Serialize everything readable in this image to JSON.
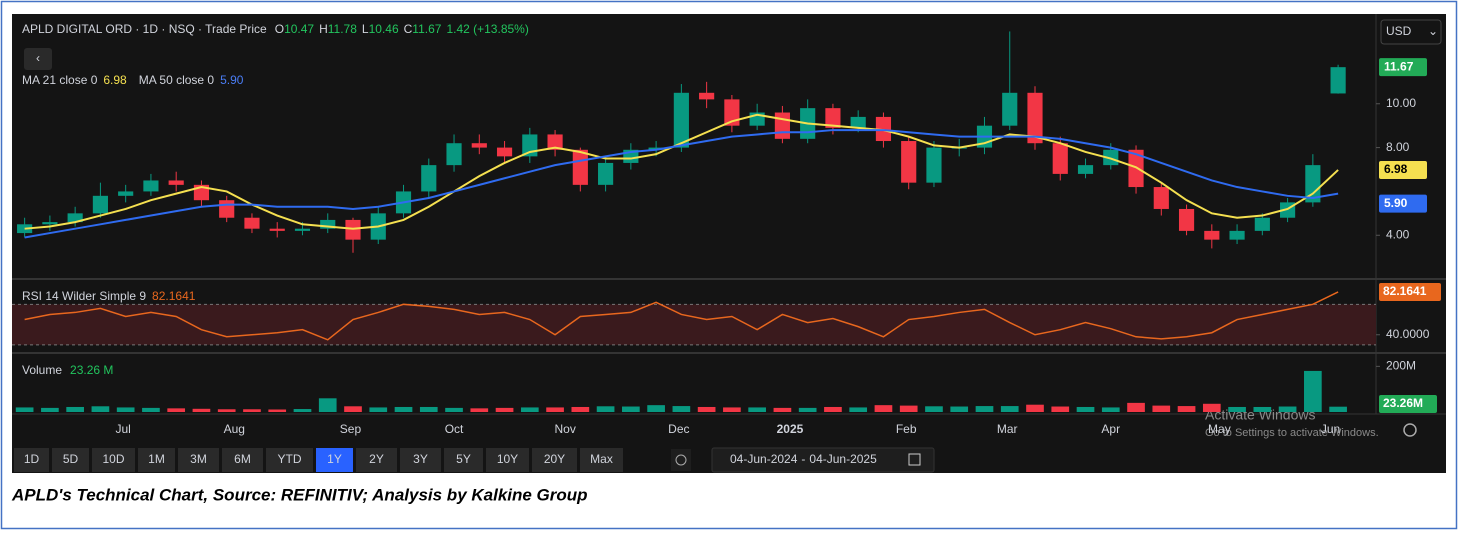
{
  "chart_data": [
    {
      "type": "candlestick",
      "title": "APLD DIGITAL ORD · 1D · NSQ · Trade Price",
      "change_label": "1.42 (+13.85%)",
      "xlim": [
        -0.5,
        53.5
      ],
      "xticks": [
        {
          "value": 3.9,
          "label": "Jul"
        },
        {
          "value": 8.3,
          "label": "Aug"
        },
        {
          "value": 12.9,
          "label": "Sep"
        },
        {
          "value": 17,
          "label": "Oct"
        },
        {
          "value": 21.4,
          "label": "Nov"
        },
        {
          "value": 25.9,
          "label": "Dec"
        },
        {
          "value": 30.3,
          "label": "2025"
        },
        {
          "value": 34.9,
          "label": "Feb"
        },
        {
          "value": 38.9,
          "label": "Mar"
        },
        {
          "value": 43,
          "label": "Apr"
        },
        {
          "value": 47.3,
          "label": "May"
        },
        {
          "value": 51.7,
          "label": "Jun"
        }
      ],
      "ylim": [
        2.05,
        14.05
      ],
      "yticks": [
        {
          "value": 4,
          "label": "4.00"
        },
        {
          "value": 8,
          "label": "8.00"
        },
        {
          "value": 10,
          "label": "10.00"
        }
      ],
      "up_color": "#089981",
      "down_color": "#f23645",
      "open": [
        4.1,
        4.5,
        4.6,
        5.0,
        5.8,
        6.0,
        6.5,
        6.3,
        5.6,
        4.8,
        4.3,
        4.2,
        4.3,
        4.7,
        3.8,
        5.0,
        6.0,
        7.2,
        8.2,
        8.0,
        7.6,
        8.6,
        7.9,
        6.3,
        7.3,
        7.9,
        8.0,
        10.5,
        10.2,
        9.0,
        9.6,
        8.4,
        9.8,
        8.9,
        9.4,
        8.3,
        6.4,
        8.0,
        8.0,
        9.0,
        10.5,
        8.2,
        6.8,
        7.2,
        7.9,
        6.2,
        5.2,
        4.2,
        3.8,
        4.2,
        4.8,
        5.5,
        10.47
      ],
      "high": [
        4.8,
        4.9,
        5.3,
        6.4,
        6.3,
        6.8,
        6.9,
        6.5,
        5.8,
        5.0,
        4.6,
        4.6,
        5.0,
        4.8,
        5.3,
        6.3,
        7.5,
        8.6,
        8.6,
        8.3,
        8.9,
        8.8,
        8.0,
        7.6,
        8.2,
        8.3,
        10.9,
        11.0,
        10.4,
        10.0,
        9.9,
        10.2,
        10.0,
        9.7,
        9.6,
        8.5,
        8.3,
        8.4,
        9.4,
        13.3,
        10.8,
        8.5,
        7.5,
        8.2,
        8.1,
        6.4,
        5.4,
        4.5,
        4.5,
        5.0,
        5.7,
        7.7,
        11.78
      ],
      "low": [
        3.9,
        4.2,
        4.4,
        4.8,
        5.5,
        5.8,
        6.0,
        5.3,
        4.6,
        4.1,
        3.9,
        4.0,
        4.1,
        3.2,
        3.6,
        4.8,
        5.7,
        6.9,
        7.7,
        7.3,
        7.3,
        7.6,
        6.0,
        6.0,
        7.0,
        7.6,
        7.8,
        9.8,
        8.7,
        8.8,
        8.2,
        8.2,
        8.6,
        8.7,
        8.0,
        6.1,
        6.2,
        7.6,
        7.7,
        8.8,
        7.9,
        6.5,
        6.6,
        7.0,
        5.9,
        4.9,
        4.0,
        3.4,
        3.6,
        4.0,
        4.6,
        5.3,
        10.46
      ],
      "close": [
        4.5,
        4.6,
        5.0,
        5.8,
        6.0,
        6.5,
        6.3,
        5.6,
        4.8,
        4.3,
        4.2,
        4.3,
        4.7,
        3.8,
        5.0,
        6.0,
        7.2,
        8.2,
        8.0,
        7.6,
        8.6,
        7.9,
        6.3,
        7.3,
        7.9,
        8.0,
        10.5,
        10.2,
        9.0,
        9.6,
        8.4,
        9.8,
        8.9,
        9.4,
        8.3,
        6.4,
        8.0,
        8.0,
        9.0,
        10.5,
        8.2,
        6.8,
        7.2,
        7.9,
        6.2,
        5.2,
        4.2,
        3.8,
        4.2,
        4.8,
        5.5,
        7.2,
        11.67
      ],
      "overlays": [
        {
          "name": "MA 21 close 0",
          "color": "#f5e050",
          "values": [
            4.3,
            4.4,
            4.6,
            4.9,
            5.2,
            5.6,
            5.9,
            6.2,
            6.0,
            5.4,
            4.9,
            4.5,
            4.4,
            4.3,
            4.4,
            4.7,
            5.3,
            6.0,
            6.7,
            7.3,
            7.8,
            8.0,
            7.8,
            7.5,
            7.5,
            7.7,
            8.2,
            8.7,
            9.2,
            9.5,
            9.3,
            9.1,
            9.0,
            8.9,
            8.8,
            8.5,
            8.1,
            8.0,
            8.2,
            8.6,
            8.5,
            8.2,
            7.8,
            7.5,
            7.1,
            6.4,
            5.6,
            5.0,
            4.8,
            4.9,
            5.2,
            5.9,
            6.98
          ]
        },
        {
          "name": "MA 50 close 0",
          "color": "#2f6bf0",
          "values": [
            3.9,
            4.1,
            4.3,
            4.5,
            4.7,
            4.9,
            5.1,
            5.3,
            5.4,
            5.4,
            5.3,
            5.3,
            5.3,
            5.2,
            5.3,
            5.5,
            5.7,
            6.0,
            6.3,
            6.6,
            6.9,
            7.2,
            7.4,
            7.6,
            7.8,
            7.9,
            8.1,
            8.3,
            8.5,
            8.6,
            8.7,
            8.7,
            8.8,
            8.8,
            8.8,
            8.7,
            8.6,
            8.5,
            8.5,
            8.5,
            8.5,
            8.4,
            8.2,
            8.0,
            7.7,
            7.3,
            6.9,
            6.5,
            6.2,
            6.0,
            5.8,
            5.7,
            5.9
          ],
          "value_labels": [
            null,
            null,
            null,
            null,
            null,
            null,
            null,
            null,
            null,
            null,
            null,
            null,
            null,
            null,
            null,
            null,
            null,
            null,
            null,
            null,
            null,
            null,
            null,
            null,
            null,
            null,
            null,
            null,
            null,
            null,
            null,
            null,
            null,
            null,
            null,
            null,
            null,
            null,
            null,
            null,
            null,
            null,
            null,
            null,
            null,
            null,
            null,
            null,
            null,
            null,
            null,
            null,
            "5.90"
          ]
        }
      ]
    },
    {
      "type": "line",
      "ylim": [
        23,
        92
      ],
      "yticks": [
        {
          "value": 40,
          "label": "40.0000"
        }
      ],
      "bands": [
        30,
        70
      ],
      "series": [
        {
          "name": "RSI 14 Wilder Simple 9",
          "color": "#e8671e",
          "values": [
            55,
            60,
            62,
            66,
            58,
            62,
            58,
            45,
            38,
            40,
            42,
            45,
            35,
            55,
            62,
            70,
            68,
            65,
            60,
            62,
            55,
            40,
            58,
            60,
            62,
            72,
            60,
            55,
            58,
            45,
            60,
            52,
            56,
            48,
            38,
            55,
            58,
            62,
            65,
            52,
            40,
            45,
            52,
            46,
            38,
            36,
            38,
            42,
            55,
            60,
            65,
            70,
            82.1641
          ]
        }
      ]
    },
    {
      "type": "bar",
      "ylim": [
        0,
        241
      ],
      "yticks": [
        {
          "value": 200,
          "label": "200M"
        }
      ],
      "legend_value": "23.26 M",
      "series": [
        {
          "name": "Volume",
          "values": [
            20,
            18,
            22,
            25,
            20,
            18,
            16,
            14,
            12,
            12,
            11,
            13,
            60,
            25,
            20,
            22,
            22,
            18,
            16,
            18,
            20,
            20,
            22,
            25,
            24,
            30,
            26,
            22,
            20,
            20,
            18,
            18,
            22,
            20,
            30,
            28,
            25,
            24,
            26,
            26,
            32,
            24,
            22,
            20,
            40,
            28,
            26,
            36,
            22,
            22,
            24,
            180,
            23.26
          ],
          "value_labels": [
            null,
            null,
            null,
            null,
            null,
            null,
            null,
            null,
            null,
            null,
            null,
            null,
            null,
            null,
            null,
            null,
            null,
            null,
            null,
            null,
            null,
            null,
            null,
            null,
            null,
            null,
            null,
            null,
            null,
            null,
            null,
            null,
            null,
            null,
            null,
            null,
            null,
            null,
            null,
            null,
            null,
            null,
            null,
            null,
            null,
            null,
            null,
            null,
            null,
            null,
            null,
            null,
            "23.26M"
          ]
        }
      ]
    }
  ],
  "ui": {
    "currency": "USD",
    "back": "‹",
    "ohlc_letters": [
      "O",
      "H",
      "L",
      "C"
    ],
    "ranges": [
      "1D",
      "5D",
      "10D",
      "1M",
      "3M",
      "6M",
      "YTD",
      "1Y",
      "2Y",
      "3Y",
      "5Y",
      "10Y",
      "20Y",
      "Max"
    ],
    "active_range": "1Y",
    "date_from": "04-Jun-2024",
    "date_to": "04-Jun-2025",
    "watermark": [
      "Activate Windows",
      "Go to Settings to activate Windows."
    ]
  },
  "caption": "APLD's Technical Chart, Source: REFINITIV; Analysis by Kalkine Group"
}
